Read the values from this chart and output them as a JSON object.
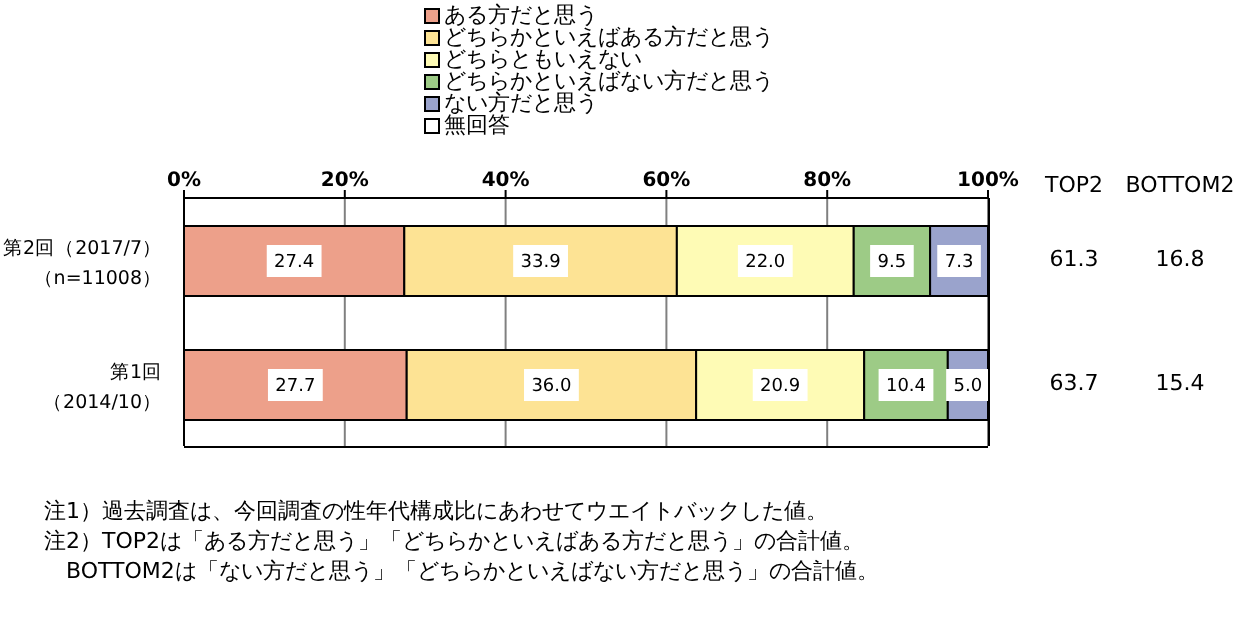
{
  "chart_data": {
    "type": "bar",
    "orientation": "horizontal",
    "stacked": true,
    "categories": [
      "第2回（2017/7）（n=11008）",
      "第1回（2014/10）"
    ],
    "series": [
      {
        "name": "ある方だと思う",
        "color": "#eda08a",
        "values": [
          27.4,
          27.7
        ],
        "value_labels": [
          "27.4",
          "27.7"
        ]
      },
      {
        "name": "どちらかといえばある方だと思う",
        "color": "#fde394",
        "values": [
          33.9,
          36.0
        ],
        "value_labels": [
          "33.9",
          "36.0"
        ]
      },
      {
        "name": "どちらともいえない",
        "color": "#fefbb5",
        "values": [
          22.0,
          20.9
        ],
        "value_labels": [
          "22.0",
          "20.9"
        ]
      },
      {
        "name": "どちらかといえばない方だと思う",
        "color": "#9dcb86",
        "values": [
          9.5,
          10.4
        ],
        "value_labels": [
          "9.5",
          "10.4"
        ]
      },
      {
        "name": "ない方だと思う",
        "color": "#9aa3cc",
        "values": [
          7.3,
          5.0
        ],
        "value_labels": [
          "7.3",
          "5.0"
        ]
      },
      {
        "name": "無回答",
        "color": "#ffffff",
        "values": [
          null,
          null
        ]
      }
    ],
    "xlim": [
      0,
      100
    ],
    "xticks": [
      {
        "value": 0,
        "label": "0%"
      },
      {
        "value": 20,
        "label": "20%"
      },
      {
        "value": 40,
        "label": "40%"
      },
      {
        "value": 60,
        "label": "60%"
      },
      {
        "value": 80,
        "label": "80%"
      },
      {
        "value": 100,
        "label": "100%"
      }
    ],
    "grid": "x",
    "legend": "top",
    "annotations": [
      "TOP2",
      "BOTTOM2",
      "61.3",
      "16.8",
      "63.7",
      "15.4",
      "注1）過去調査は、今回調査の性年代構成比にあわせてウエイトバックした値。",
      "注2）TOP2は「ある方だと思う」「どちらかといえばある方だと思う」の合計値。",
      "　BOTTOM2は「ない方だと思う」「どちらかといえばない方だと思う」の合計値。"
    ]
  }
}
